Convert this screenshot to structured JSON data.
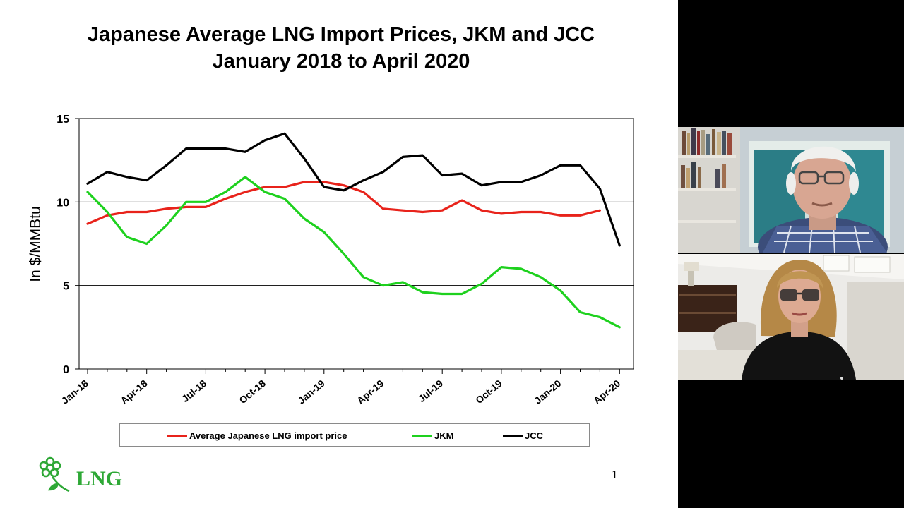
{
  "slide": {
    "title_line1": "Japanese Average LNG Import Prices, JKM and JCC",
    "title_line2": "January 2018 to April 2020",
    "page_number": "1",
    "logo_text": "LNG"
  },
  "colors": {
    "red": "#e8231b",
    "green": "#1ed11e",
    "black": "#000000",
    "logo_green": "#2ea836"
  },
  "chart_data": {
    "type": "line",
    "title": "Japanese Average LNG Import Prices, JKM and JCC January 2018 to April 2020",
    "ylabel": "In $/MMBtu",
    "xlabel": "",
    "ylim": [
      0,
      15
    ],
    "yticks": [
      0,
      5,
      10,
      15
    ],
    "grid": true,
    "legend_position": "bottom",
    "x": [
      "Jan-18",
      "Feb-18",
      "Mar-18",
      "Apr-18",
      "May-18",
      "Jun-18",
      "Jul-18",
      "Aug-18",
      "Sep-18",
      "Oct-18",
      "Nov-18",
      "Dec-18",
      "Jan-19",
      "Feb-19",
      "Mar-19",
      "Apr-19",
      "May-19",
      "Jun-19",
      "Jul-19",
      "Aug-19",
      "Sep-19",
      "Oct-19",
      "Nov-19",
      "Dec-19",
      "Jan-20",
      "Feb-20",
      "Mar-20",
      "Apr-20"
    ],
    "xtick_labels": [
      "Jan-18",
      "Apr-18",
      "Jul-18",
      "Oct-18",
      "Jan-19",
      "Apr-19",
      "Jul-19",
      "Oct-19",
      "Jan-20",
      "Apr-20"
    ],
    "series": [
      {
        "name": "Average Japanese LNG import price",
        "color": "#e8231b",
        "values": [
          8.7,
          9.2,
          9.4,
          9.4,
          9.6,
          9.7,
          9.7,
          10.2,
          10.6,
          10.9,
          10.9,
          11.2,
          11.2,
          11.0,
          10.6,
          9.6,
          9.5,
          9.4,
          9.5,
          10.1,
          9.5,
          9.3,
          9.4,
          9.4,
          9.2,
          9.2,
          9.5,
          null
        ]
      },
      {
        "name": "JKM",
        "color": "#1ed11e",
        "values": [
          10.6,
          9.4,
          7.9,
          7.5,
          8.6,
          10.0,
          10.0,
          10.6,
          11.5,
          10.6,
          10.2,
          9.0,
          8.2,
          6.9,
          5.5,
          5.0,
          5.2,
          4.6,
          4.5,
          4.5,
          5.1,
          6.1,
          6.0,
          5.5,
          4.7,
          3.4,
          3.1,
          2.5
        ]
      },
      {
        "name": "JCC",
        "color": "#000000",
        "values": [
          11.1,
          11.8,
          11.5,
          11.3,
          12.2,
          13.2,
          13.2,
          13.2,
          13.0,
          13.7,
          14.1,
          12.6,
          10.9,
          10.7,
          11.3,
          11.8,
          12.7,
          12.8,
          11.6,
          11.7,
          11.0,
          11.2,
          11.2,
          11.6,
          12.2,
          12.2,
          10.8,
          7.4
        ]
      }
    ]
  }
}
